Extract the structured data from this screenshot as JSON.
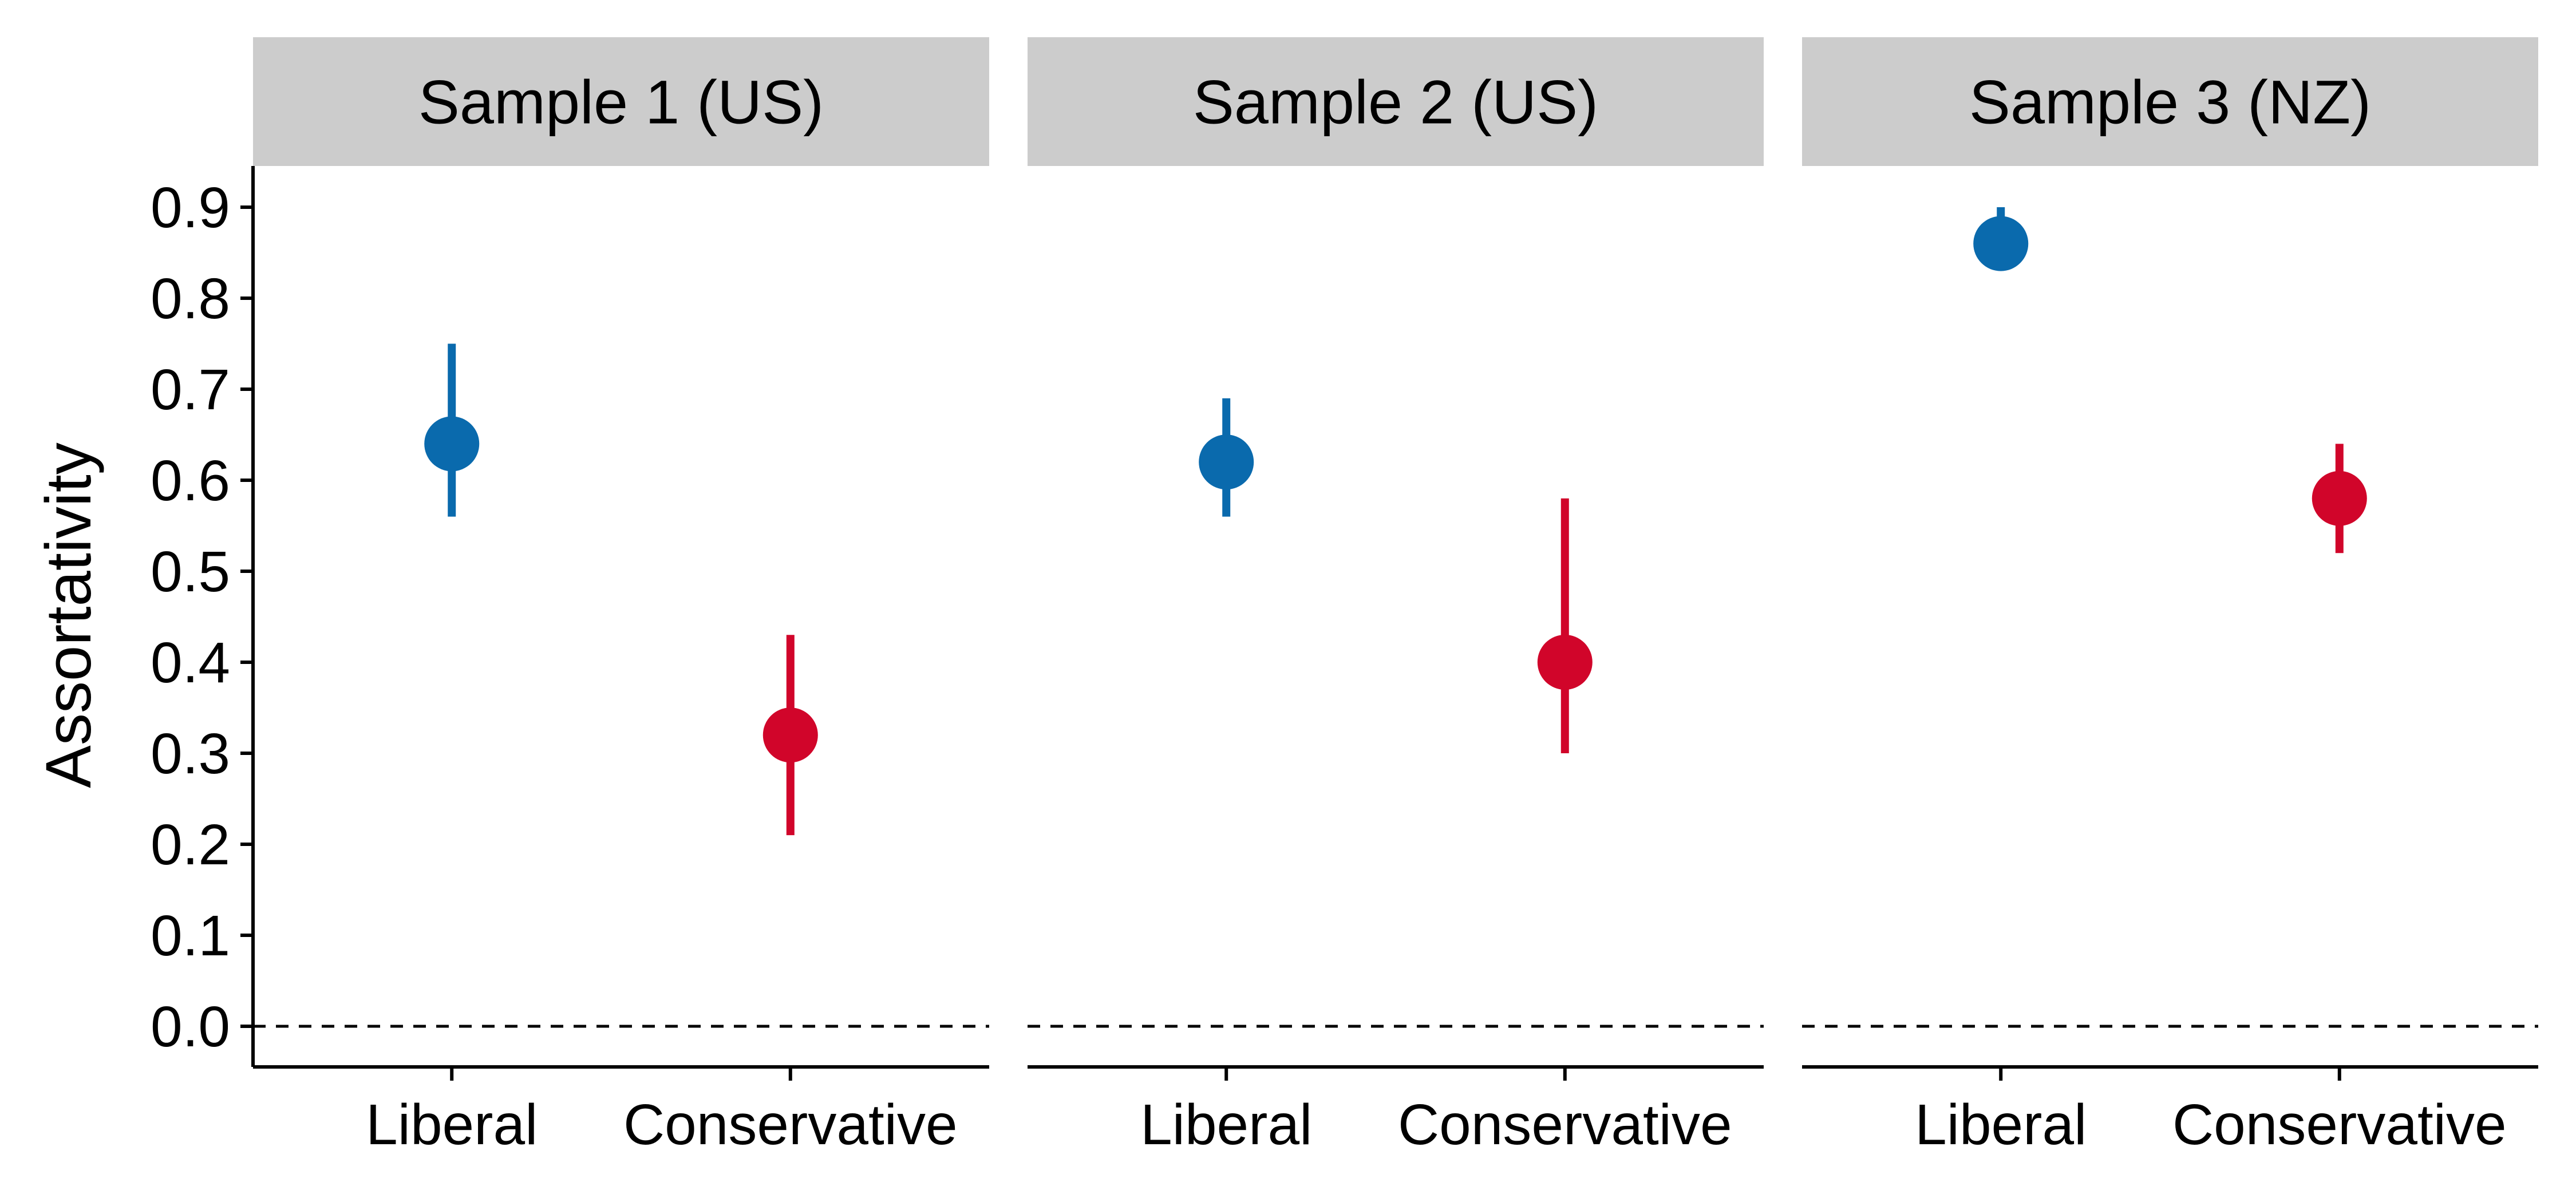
{
  "chart_data": {
    "type": "dot-errorbar",
    "ylabel": "Assortativity",
    "ylim": [
      -0.045,
      0.945
    ],
    "yticks": [
      0.0,
      0.1,
      0.2,
      0.3,
      0.4,
      0.5,
      0.6,
      0.7,
      0.8,
      0.9
    ],
    "yticklabels": [
      "0.0",
      "0.1",
      "0.2",
      "0.3",
      "0.4",
      "0.5",
      "0.6",
      "0.7",
      "0.8",
      "0.9"
    ],
    "categories": [
      "Liberal",
      "Conservative"
    ],
    "reference_line": {
      "y": 0.0,
      "style": "dashed"
    },
    "colors": {
      "Liberal": "#0a6aad",
      "Conservative": "#d1052a"
    },
    "panels": [
      {
        "title": "Sample 1 (US)",
        "points": [
          {
            "category": "Liberal",
            "y": 0.64,
            "lower": 0.56,
            "upper": 0.75
          },
          {
            "category": "Conservative",
            "y": 0.32,
            "lower": 0.21,
            "upper": 0.43
          }
        ]
      },
      {
        "title": "Sample 2 (US)",
        "points": [
          {
            "category": "Liberal",
            "y": 0.62,
            "lower": 0.56,
            "upper": 0.69
          },
          {
            "category": "Conservative",
            "y": 0.4,
            "lower": 0.3,
            "upper": 0.58
          }
        ]
      },
      {
        "title": "Sample 3 (NZ)",
        "points": [
          {
            "category": "Liberal",
            "y": 0.86,
            "lower": 0.84,
            "upper": 0.9
          },
          {
            "category": "Conservative",
            "y": 0.58,
            "lower": 0.52,
            "upper": 0.64
          }
        ]
      }
    ],
    "grid": false,
    "legend": "none"
  }
}
